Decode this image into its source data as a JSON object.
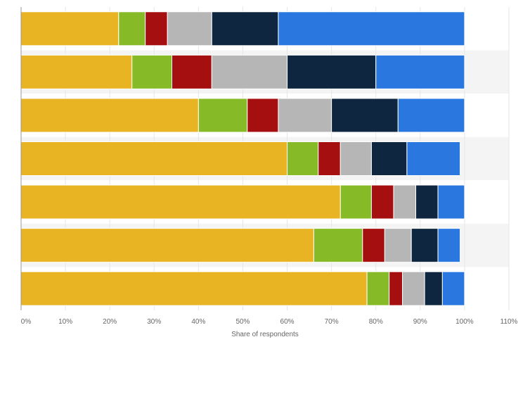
{
  "chart_data": {
    "type": "bar",
    "orientation": "horizontal",
    "stacked": true,
    "xlabel": "Share of respondents",
    "xlim": [
      0,
      110
    ],
    "xticks": [
      "0%",
      "10%",
      "20%",
      "30%",
      "40%",
      "50%",
      "60%",
      "70%",
      "80%",
      "90%",
      "100%",
      "110%"
    ],
    "categories": [
      "",
      "",
      "",
      "",
      "",
      "",
      ""
    ],
    "series": [
      {
        "color": "#e9b424",
        "values": [
          22,
          25,
          40,
          60,
          72,
          66,
          78
        ]
      },
      {
        "color": "#86bb27",
        "values": [
          6,
          9,
          11,
          7,
          7,
          11,
          5
        ]
      },
      {
        "color": "#a50f0f",
        "values": [
          5,
          9,
          7,
          5,
          5,
          5,
          3
        ]
      },
      {
        "color": "#b6b6b6",
        "values": [
          10,
          17,
          12,
          7,
          5,
          6,
          5
        ]
      },
      {
        "color": "#0e2640",
        "values": [
          15,
          20,
          15,
          8,
          5,
          6,
          4
        ]
      },
      {
        "color": "#2a78df",
        "values": [
          42,
          20,
          15,
          12,
          6,
          5,
          5
        ]
      }
    ],
    "grid": true,
    "legend": "none"
  }
}
